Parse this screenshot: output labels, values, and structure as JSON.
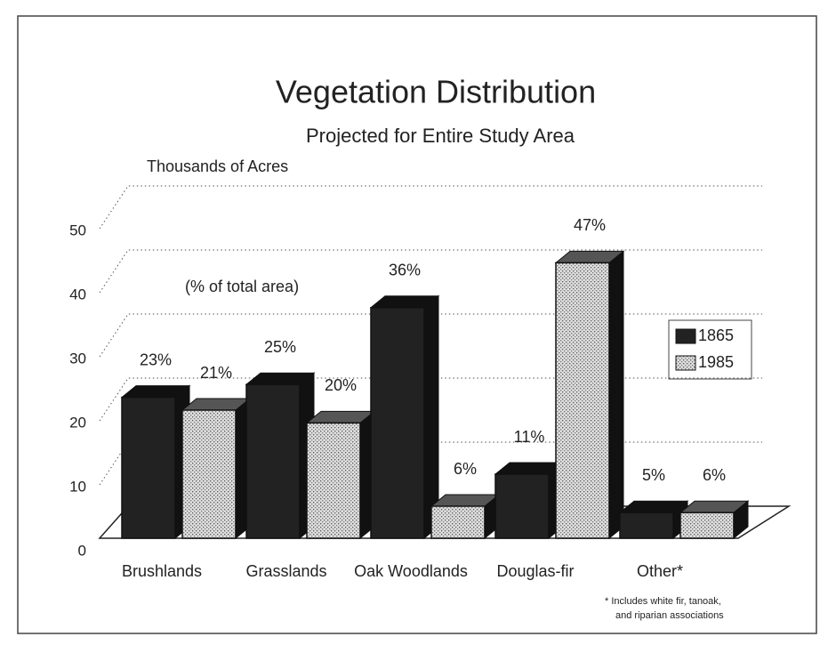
{
  "chart_data": {
    "type": "bar3d",
    "title": "Vegetation Distribution",
    "subtitle": "Projected for Entire Study Area",
    "y_label": "Thousands of Acres",
    "annotation": "(% of total area)",
    "footnote": [
      "* Includes white fir, tanoak,",
      "and riparian associations"
    ],
    "categories": [
      "Brushlands",
      "Grasslands",
      "Oak Woodlands",
      "Douglas-fir",
      "Other*"
    ],
    "series": [
      {
        "name": "1865",
        "color": "#222222",
        "values": [
          22,
          24,
          36,
          10,
          4
        ],
        "percent_labels": [
          "23%",
          "25%",
          "36%",
          "11%",
          "5%"
        ]
      },
      {
        "name": "1985",
        "color": "#bbbbbb",
        "values": [
          20,
          18,
          5,
          43,
          4
        ],
        "percent_labels": [
          "21%",
          "20%",
          "6%",
          "47%",
          "6%"
        ]
      }
    ],
    "ylim": [
      0,
      50
    ],
    "yticks": [
      0,
      10,
      20,
      30,
      40,
      50
    ],
    "grid": true,
    "legend": "right"
  }
}
